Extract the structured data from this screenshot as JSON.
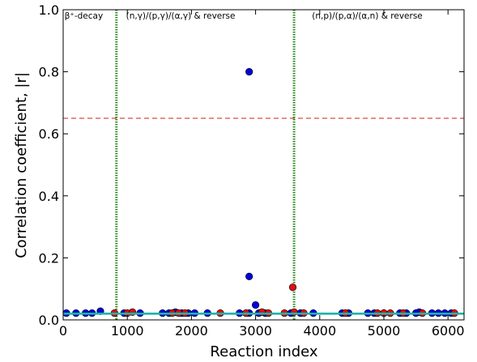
{
  "chart_data": {
    "type": "scatter",
    "xlabel": "Reaction index",
    "ylabel": "Correlation coefficient, |r|",
    "xlim": [
      0,
      6250
    ],
    "ylim": [
      0,
      1.0
    ],
    "x_ticks": [
      0,
      1000,
      2000,
      3000,
      4000,
      5000,
      6000
    ],
    "y_ticks": [
      0.0,
      0.2,
      0.4,
      0.6,
      0.8,
      1.0
    ],
    "grid": false,
    "threshold_line": {
      "y": 0.65,
      "color": "#e03030",
      "style": "dashed"
    },
    "baseline_line": {
      "y": 0.02,
      "color": "#20b2aa"
    },
    "region_dividers": [
      {
        "x": 830,
        "color": "#2e8b22"
      },
      {
        "x": 3600,
        "color": "#2e8b22"
      }
    ],
    "region_labels": [
      {
        "text": "β⁺-decay",
        "x": 20
      },
      {
        "text": "(n,γ)/(p,γ)/(α,γ) & reverse",
        "x": 980
      },
      {
        "text": "(n,p)/(p,α)/(α,n) & reverse",
        "x": 3880
      }
    ],
    "series": [
      {
        "color": "#0000dd",
        "points": [
          [
            50,
            0.022
          ],
          [
            200,
            0.022
          ],
          [
            350,
            0.022
          ],
          [
            450,
            0.022
          ],
          [
            580,
            0.028
          ],
          [
            950,
            0.022
          ],
          [
            1200,
            0.022
          ],
          [
            1550,
            0.022
          ],
          [
            1650,
            0.022
          ],
          [
            1750,
            0.025
          ],
          [
            1850,
            0.022
          ],
          [
            1950,
            0.022
          ],
          [
            2050,
            0.022
          ],
          [
            2250,
            0.022
          ],
          [
            2750,
            0.022
          ],
          [
            2900,
            0.8
          ],
          [
            2900,
            0.14
          ],
          [
            2900,
            0.022
          ],
          [
            3000,
            0.048
          ],
          [
            3050,
            0.022
          ],
          [
            3150,
            0.022
          ],
          [
            3550,
            0.022
          ],
          [
            3700,
            0.022
          ],
          [
            3900,
            0.022
          ],
          [
            4350,
            0.022
          ],
          [
            4450,
            0.022
          ],
          [
            4750,
            0.022
          ],
          [
            4850,
            0.022
          ],
          [
            5000,
            0.022
          ],
          [
            5250,
            0.022
          ],
          [
            5350,
            0.022
          ],
          [
            5500,
            0.022
          ],
          [
            5550,
            0.025
          ],
          [
            5750,
            0.022
          ],
          [
            5850,
            0.022
          ],
          [
            5950,
            0.022
          ],
          [
            6050,
            0.022
          ]
        ]
      },
      {
        "color": "#dd1111",
        "points": [
          [
            800,
            0.022
          ],
          [
            1000,
            0.022
          ],
          [
            1080,
            0.025
          ],
          [
            1700,
            0.022
          ],
          [
            1800,
            0.022
          ],
          [
            1900,
            0.022
          ],
          [
            2450,
            0.022
          ],
          [
            2850,
            0.022
          ],
          [
            3100,
            0.025
          ],
          [
            3200,
            0.022
          ],
          [
            3450,
            0.022
          ],
          [
            3580,
            0.105
          ],
          [
            3600,
            0.025
          ],
          [
            3750,
            0.022
          ],
          [
            4400,
            0.022
          ],
          [
            4900,
            0.022
          ],
          [
            5000,
            0.022
          ],
          [
            5100,
            0.022
          ],
          [
            5300,
            0.022
          ],
          [
            5600,
            0.022
          ],
          [
            6100,
            0.022
          ]
        ]
      }
    ]
  }
}
